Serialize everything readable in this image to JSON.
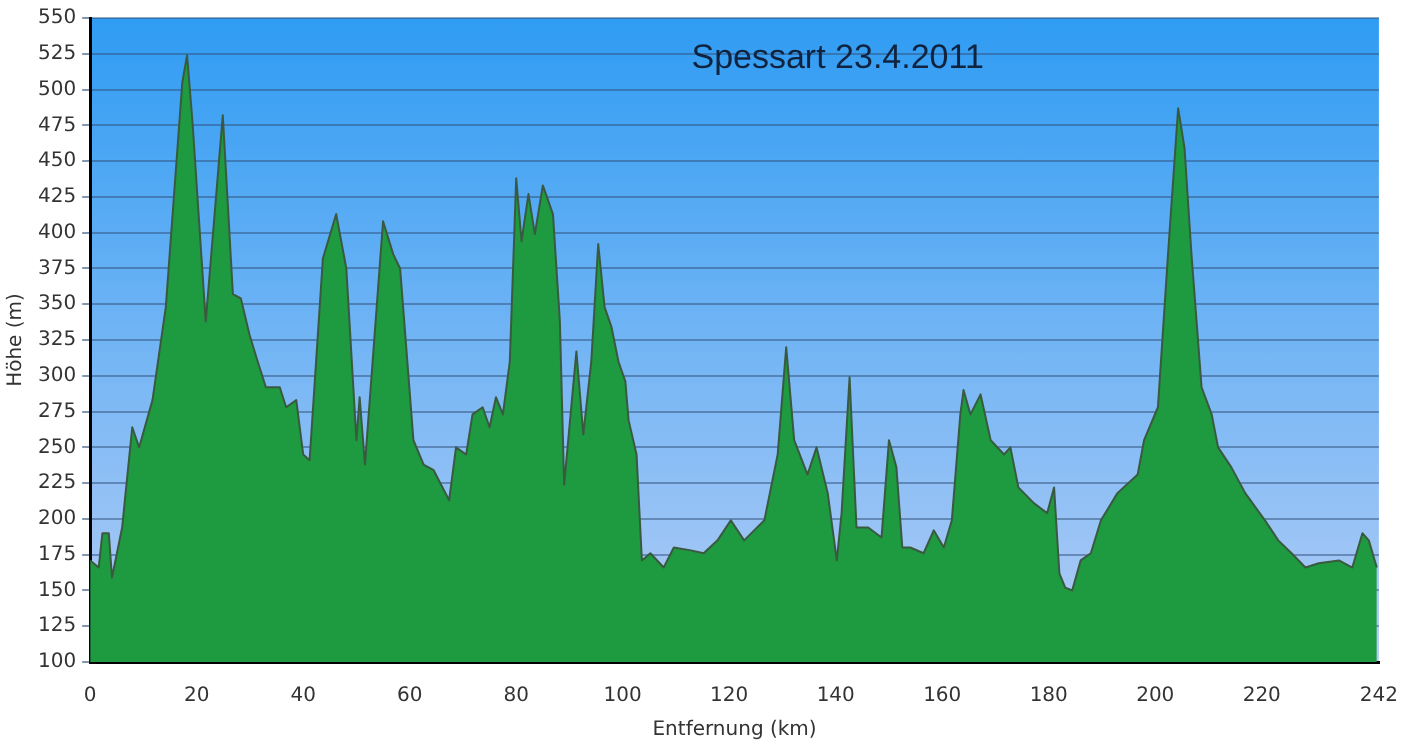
{
  "chart_data": {
    "type": "area",
    "title": "Spessart 23.4.2011",
    "xlabel": "Entfernung (km)",
    "ylabel": "Höhe (m)",
    "xlim": [
      0,
      242
    ],
    "xticks": [
      0,
      20,
      40,
      60,
      80,
      100,
      120,
      140,
      160,
      180,
      200,
      220,
      242
    ],
    "ylim": [
      100,
      550
    ],
    "yticks": [
      100,
      125,
      150,
      175,
      200,
      225,
      250,
      275,
      300,
      325,
      350,
      375,
      400,
      425,
      450,
      475,
      500,
      525,
      550
    ],
    "grid": "y",
    "marker": "none",
    "legend": false,
    "series": [
      {
        "color": "#1e9a40",
        "x": [
          0,
          1.6,
          2.3,
          3.5,
          4.1,
          6,
          7.9,
          9.2,
          11.7,
          14.2,
          17.3,
          18.2,
          19.2,
          21.7,
          24.9,
          26.8,
          28.3,
          29.9,
          31.2,
          33,
          35.6,
          36.8,
          38.7,
          40,
          41.2,
          43.7,
          46.2,
          48.1,
          50,
          50.6,
          51.6,
          55,
          56.9,
          58.2,
          60.7,
          62.6,
          64.5,
          67.4,
          68.7,
          70.6,
          71.8,
          73.7,
          75,
          76.2,
          77.5,
          78.8,
          80,
          81,
          82.3,
          83.5,
          85,
          86.9,
          88.2,
          89,
          91.3,
          92.6,
          94.1,
          95.4,
          96.6,
          97.9,
          99.2,
          100.5,
          101.1,
          102.6,
          103.6,
          105.2,
          107.7,
          109.6,
          112.8,
          115.2,
          117.8,
          120.3,
          122.8,
          126.6,
          129.1,
          130.7,
          132.2,
          134.7,
          136.4,
          138.5,
          140.2,
          141.1,
          142.6,
          143.9,
          146.1,
          148.6,
          150,
          151.4,
          152.5,
          154,
          156.5,
          158.4,
          160.3,
          161.8,
          163.4,
          164,
          165.3,
          167.2,
          169.1,
          171.6,
          172.8,
          174.3,
          177.2,
          179.7,
          181,
          182,
          183.1,
          184.4,
          186,
          187.9,
          189.8,
          192.9,
          196.7,
          197.9,
          200.5,
          202.4,
          204.3,
          205.5,
          206.8,
          208.7,
          210.6,
          211.8,
          214.3,
          216.9,
          220.6,
          223.1,
          225.6,
          228.2,
          230.7,
          234.5,
          237,
          238.9,
          240.1,
          241.6
        ],
        "values": [
          171,
          166,
          190,
          190,
          159,
          194,
          264,
          250,
          283,
          348,
          505,
          524,
          478,
          338,
          482,
          357,
          354,
          329,
          313,
          292,
          292,
          278,
          283,
          245,
          241,
          382,
          413,
          375,
          255,
          285,
          238,
          408,
          385,
          375,
          255,
          238,
          234,
          213,
          250,
          245,
          273,
          278,
          264,
          285,
          273,
          310,
          438,
          394,
          427,
          399,
          433,
          413,
          338,
          224,
          317,
          259,
          310,
          392,
          348,
          334,
          310,
          296,
          269,
          245,
          171,
          176,
          166,
          180,
          178,
          176,
          185,
          199,
          185,
          199,
          245,
          320,
          255,
          231,
          250,
          218,
          171,
          204,
          299,
          194,
          194,
          187,
          255,
          236,
          180,
          180,
          176,
          192,
          180,
          199,
          273,
          290,
          273,
          287,
          255,
          245,
          250,
          222,
          211,
          204,
          222,
          162,
          152,
          150,
          171,
          176,
          199,
          218,
          231,
          255,
          278,
          385,
          487,
          459,
          385,
          292,
          273,
          250,
          236,
          218,
          199,
          185,
          176,
          166,
          169,
          171,
          166,
          190,
          185,
          166
        ]
      }
    ]
  }
}
